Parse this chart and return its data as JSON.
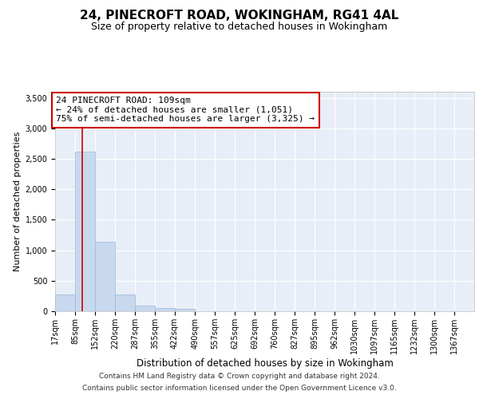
{
  "title_line1": "24, PINECROFT ROAD, WOKINGHAM, RG41 4AL",
  "title_line2": "Size of property relative to detached houses in Wokingham",
  "xlabel": "Distribution of detached houses by size in Wokingham",
  "ylabel": "Number of detached properties",
  "bar_color": "#c8d8ee",
  "bar_edge_color": "#9ab8d8",
  "background_color": "#e8eef7",
  "grid_color": "#ffffff",
  "bin_labels": [
    "17sqm",
    "85sqm",
    "152sqm",
    "220sqm",
    "287sqm",
    "355sqm",
    "422sqm",
    "490sqm",
    "557sqm",
    "625sqm",
    "692sqm",
    "760sqm",
    "827sqm",
    "895sqm",
    "962sqm",
    "1030sqm",
    "1097sqm",
    "1165sqm",
    "1232sqm",
    "1300sqm",
    "1367sqm"
  ],
  "bar_heights": [
    270,
    2620,
    1140,
    280,
    90,
    55,
    35,
    0,
    0,
    0,
    0,
    0,
    0,
    0,
    0,
    0,
    0,
    0,
    0,
    0
  ],
  "bin_edges": [
    17,
    85,
    152,
    220,
    287,
    355,
    422,
    490,
    557,
    625,
    692,
    760,
    827,
    895,
    962,
    1030,
    1097,
    1165,
    1232,
    1300,
    1367
  ],
  "property_size": 109,
  "red_line_color": "#cc0000",
  "annotation_text": "24 PINECROFT ROAD: 109sqm\n← 24% of detached houses are smaller (1,051)\n75% of semi-detached houses are larger (3,325) →",
  "annotation_box_color": "#ffffff",
  "annotation_border_color": "#cc0000",
  "ylim": [
    0,
    3600
  ],
  "yticks": [
    0,
    500,
    1000,
    1500,
    2000,
    2500,
    3000,
    3500
  ],
  "footer_line1": "Contains HM Land Registry data © Crown copyright and database right 2024.",
  "footer_line2": "Contains public sector information licensed under the Open Government Licence v3.0.",
  "title_fontsize": 11,
  "subtitle_fontsize": 9,
  "axis_label_fontsize": 8.5,
  "tick_fontsize": 7,
  "annotation_fontsize": 8,
  "footer_fontsize": 6.5,
  "ylabel_fontsize": 8
}
